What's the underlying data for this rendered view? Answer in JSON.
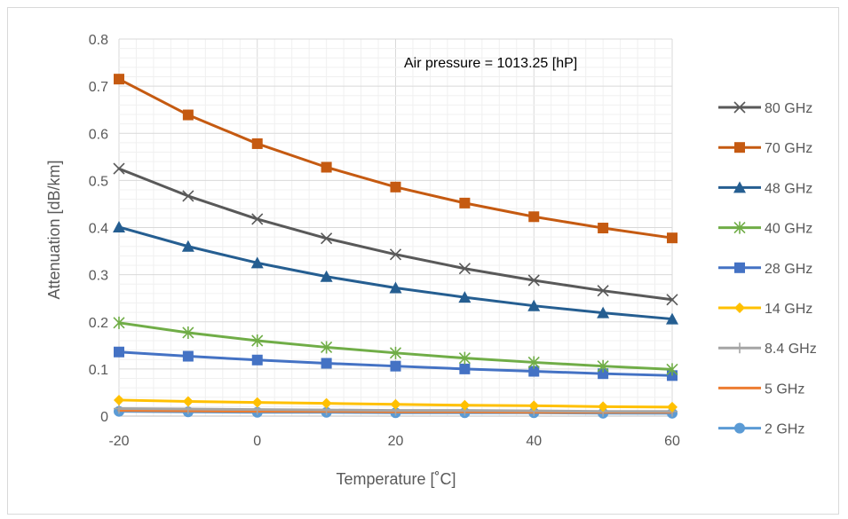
{
  "chart_data": {
    "type": "line",
    "title": "",
    "xlabel": "Temperature [˚C]",
    "ylabel": "Attenuation [dB/km]",
    "annotation": "Air pressure = 1013.25 [hP]",
    "x": [
      -20,
      -10,
      0,
      10,
      20,
      30,
      40,
      50,
      60
    ],
    "xlim": [
      -20,
      60
    ],
    "ylim": [
      0,
      0.8
    ],
    "xticks": [
      "-20",
      "0",
      "20",
      "40",
      "60"
    ],
    "xtick_values": [
      -20,
      0,
      20,
      40,
      60
    ],
    "yticks": [
      "0",
      "0.1",
      "0.2",
      "0.3",
      "0.4",
      "0.5",
      "0.6",
      "0.7",
      "0.8"
    ],
    "ytick_values": [
      0,
      0.1,
      0.2,
      0.3,
      0.4,
      0.5,
      0.6,
      0.7,
      0.8
    ],
    "grid": true,
    "legend_position": "right",
    "series": [
      {
        "name": "80 GHz",
        "marker": "x",
        "color": "#595959",
        "values": [
          0.525,
          0.467,
          0.418,
          0.377,
          0.343,
          0.313,
          0.288,
          0.266,
          0.247
        ]
      },
      {
        "name": "70 GHz",
        "marker": "square",
        "color": "#C55A11",
        "values": [
          0.715,
          0.639,
          0.578,
          0.528,
          0.486,
          0.452,
          0.423,
          0.399,
          0.378
        ]
      },
      {
        "name": "48 GHz",
        "marker": "triangle",
        "color": "#255E91",
        "values": [
          0.401,
          0.36,
          0.325,
          0.296,
          0.272,
          0.252,
          0.234,
          0.219,
          0.206
        ]
      },
      {
        "name": "40 GHz",
        "marker": "star",
        "color": "#70AD47",
        "values": [
          0.198,
          0.177,
          0.16,
          0.146,
          0.134,
          0.123,
          0.114,
          0.106,
          0.099
        ]
      },
      {
        "name": "28 GHz",
        "marker": "square",
        "color": "#4472C4",
        "values": [
          0.136,
          0.127,
          0.119,
          0.112,
          0.106,
          0.1,
          0.095,
          0.09,
          0.086
        ]
      },
      {
        "name": "14 GHz",
        "marker": "diamond",
        "color": "#FFC000",
        "values": [
          0.034,
          0.031,
          0.029,
          0.027,
          0.025,
          0.023,
          0.022,
          0.02,
          0.019
        ]
      },
      {
        "name": "8.4 GHz",
        "marker": "plus",
        "color": "#A5A5A5",
        "values": [
          0.016,
          0.015,
          0.014,
          0.013,
          0.012,
          0.012,
          0.011,
          0.01,
          0.01
        ]
      },
      {
        "name": "5 GHz",
        "marker": "none",
        "color": "#ED7D31",
        "values": [
          0.012,
          0.011,
          0.01,
          0.01,
          0.009,
          0.009,
          0.008,
          0.008,
          0.008
        ]
      },
      {
        "name": "2 GHz",
        "marker": "circle",
        "color": "#5B9BD5",
        "values": [
          0.01,
          0.009,
          0.008,
          0.008,
          0.007,
          0.007,
          0.007,
          0.006,
          0.006
        ]
      }
    ]
  }
}
